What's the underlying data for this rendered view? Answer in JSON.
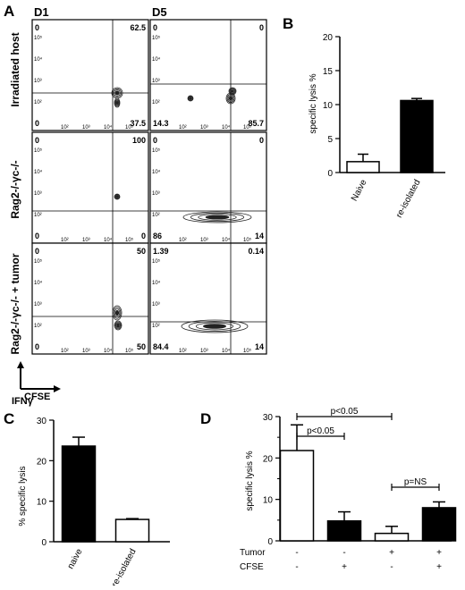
{
  "panels": {
    "A": {
      "label": "A",
      "columns": [
        "D1",
        "D5"
      ],
      "rows": [
        {
          "label": "Irradiated host",
          "cells": [
            {
              "q": [
                "0",
                "62.5",
                "0",
                "37.5"
              ]
            },
            {
              "q": [
                "0",
                "0",
                "14.3",
                "85.7"
              ]
            }
          ]
        },
        {
          "label": "Rag2-/-γc-/-",
          "cells": [
            {
              "q": [
                "0",
                "100",
                "0",
                "0"
              ]
            },
            {
              "q": [
                "0",
                "0",
                "86",
                "14"
              ]
            }
          ]
        },
        {
          "label": "Rag2-/-γc-/- + tumor",
          "cells": [
            {
              "q": [
                "0",
                "50",
                "0",
                "50"
              ]
            },
            {
              "q": [
                "1.39",
                "0.14",
                "84.4",
                "14"
              ]
            }
          ]
        }
      ],
      "axis_ticks": [
        "0",
        "10²",
        "10³",
        "10⁴",
        "10⁵"
      ],
      "y_axis_label": "IFNγ",
      "x_axis_label": "CFSE"
    }
  },
  "chart_data": [
    {
      "id": "B",
      "label": "B",
      "type": "bar",
      "categories": [
        "Naive",
        "re-isolated"
      ],
      "values": [
        1.6,
        10.6
      ],
      "errors": [
        1.1,
        0.3
      ],
      "fills": [
        "#ffffff",
        "#000000"
      ],
      "ylabel": "specific lysis %",
      "ylim": [
        0,
        20
      ],
      "yticks": [
        "0",
        "5",
        "10",
        "15",
        "20"
      ]
    },
    {
      "id": "C",
      "label": "C",
      "type": "bar",
      "categories": [
        "naive",
        "re-isolated"
      ],
      "values": [
        23.6,
        5.5
      ],
      "errors": [
        2.2,
        0.2
      ],
      "fills": [
        "#000000",
        "#ffffff"
      ],
      "ylabel": "% specific lysis",
      "ylim": [
        0,
        30
      ],
      "yticks": [
        "0",
        "10",
        "20",
        "30"
      ]
    },
    {
      "id": "D",
      "label": "D",
      "type": "bar",
      "categories": [
        "1",
        "2",
        "3",
        "4"
      ],
      "values": [
        21.8,
        4.8,
        1.8,
        8.0
      ],
      "errors": [
        6.2,
        2.2,
        1.7,
        1.4
      ],
      "fills": [
        "#ffffff",
        "#000000",
        "#ffffff",
        "#000000"
      ],
      "ylabel": "specific lysis %",
      "ylim": [
        0,
        30
      ],
      "yticks": [
        "0",
        "10",
        "20",
        "30"
      ],
      "minor_ticks": [
        "5",
        "15",
        "25"
      ],
      "row_labels": [
        "Tumor",
        "CFSE"
      ],
      "conditions": {
        "Tumor": [
          "-",
          "-",
          "+",
          "+"
        ],
        "CFSE": [
          "-",
          "+",
          "-",
          "+"
        ]
      },
      "annotations": [
        {
          "from": 0,
          "to": 1,
          "text": "p<0.05"
        },
        {
          "from": 0,
          "to": 2,
          "text": "p<0.05"
        },
        {
          "from": 2,
          "to": 3,
          "text": "p=NS"
        }
      ]
    }
  ]
}
